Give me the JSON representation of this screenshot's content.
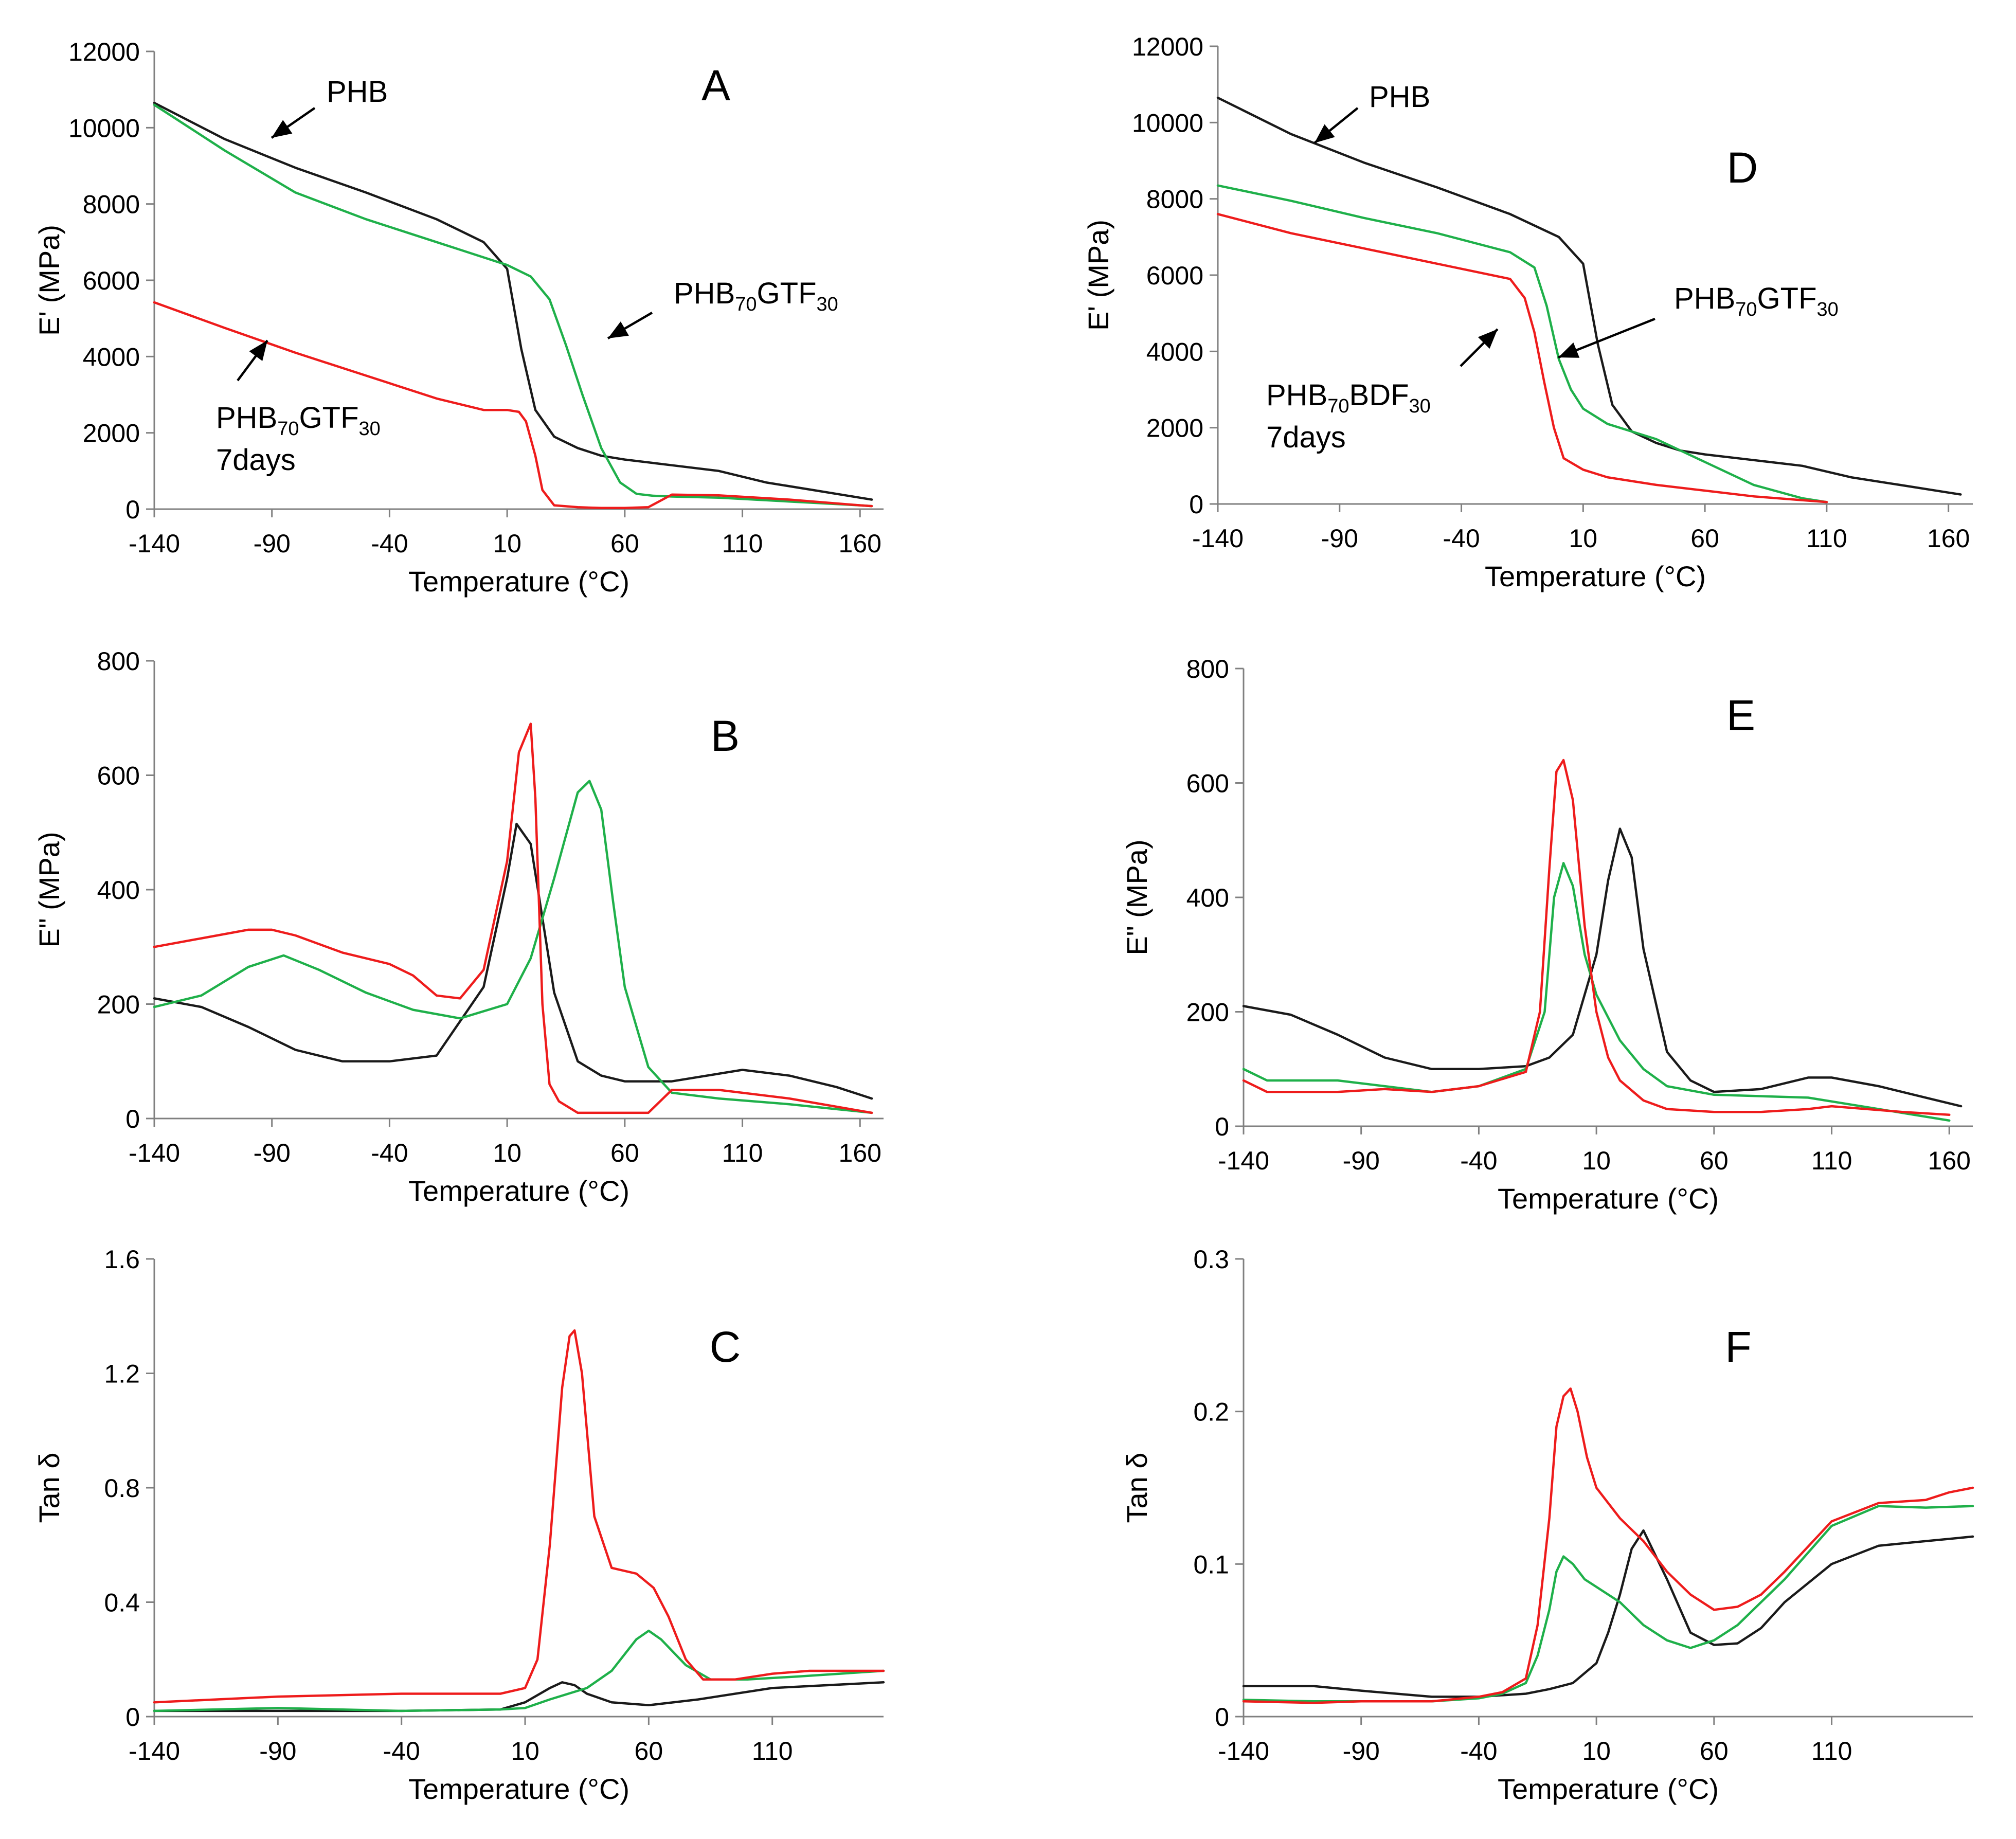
{
  "colors": {
    "PHB": "#1a1a1a",
    "PHB70GTF30": "#1fb04a",
    "PHB70BDF30_or_7days": "#ee1c1c",
    "axis": "#808080"
  },
  "chart_data": [
    {
      "id": "A",
      "type": "line",
      "letter": "A",
      "xlabel": "Temperature (°C)",
      "ylabel": "E' (MPa)",
      "xlim": [
        -140,
        170
      ],
      "ylim": [
        0,
        12000
      ],
      "xticks": [
        -140,
        -90,
        -40,
        10,
        60,
        110,
        160
      ],
      "yticks": [
        0,
        2000,
        4000,
        6000,
        8000,
        10000,
        12000
      ],
      "series": [
        {
          "color": "#1a1a1a",
          "x": [
            -140,
            -110,
            -80,
            -50,
            -20,
            0,
            10,
            16,
            22,
            30,
            40,
            50,
            60,
            80,
            100,
            120,
            140,
            160,
            165
          ],
          "y": [
            10650,
            9700,
            8950,
            8300,
            7600,
            7000,
            6300,
            4200,
            2600,
            1900,
            1600,
            1400,
            1300,
            1150,
            1000,
            700,
            500,
            300,
            250
          ]
        },
        {
          "color": "#1fb04a",
          "x": [
            -140,
            -110,
            -80,
            -50,
            -20,
            0,
            10,
            20,
            28,
            35,
            42,
            50,
            58,
            65,
            72,
            80,
            100,
            130,
            160,
            165
          ],
          "y": [
            10600,
            9400,
            8300,
            7600,
            7000,
            6600,
            6400,
            6100,
            5500,
            4300,
            3000,
            1600,
            700,
            400,
            350,
            330,
            300,
            200,
            100,
            80
          ]
        },
        {
          "color": "#ee1c1c",
          "x": [
            -140,
            -110,
            -80,
            -50,
            -20,
            0,
            10,
            15,
            18,
            22,
            25,
            30,
            40,
            50,
            60,
            70,
            80,
            100,
            130,
            160,
            165
          ],
          "y": [
            5420,
            4750,
            4100,
            3500,
            2900,
            2600,
            2600,
            2550,
            2300,
            1400,
            500,
            100,
            50,
            30,
            30,
            50,
            380,
            360,
            250,
            100,
            80
          ]
        }
      ],
      "annotations": [
        {
          "id": "phb",
          "text": "PHB",
          "sub": "",
          "after": "",
          "line2": ""
        },
        {
          "id": "gtf",
          "text": "PHB",
          "sub": "70",
          "after": "GTF",
          "sub2": "30",
          "line2": ""
        },
        {
          "id": "gtf7",
          "text": "PHB",
          "sub": "70",
          "after": "GTF",
          "sub2": "30",
          "line2": "7days"
        }
      ]
    },
    {
      "id": "B",
      "type": "line",
      "letter": "B",
      "xlabel": "Temperature (°C)",
      "ylabel": "E\" (MPa)",
      "xlim": [
        -140,
        170
      ],
      "ylim": [
        0,
        800
      ],
      "xticks": [
        -140,
        -90,
        -40,
        10,
        60,
        110,
        160
      ],
      "yticks": [
        0,
        200,
        400,
        600,
        800
      ],
      "series": [
        {
          "color": "#1a1a1a",
          "x": [
            -140,
            -120,
            -100,
            -80,
            -60,
            -40,
            -20,
            0,
            10,
            14,
            20,
            30,
            40,
            50,
            60,
            80,
            110,
            130,
            150,
            165
          ],
          "y": [
            210,
            195,
            160,
            120,
            100,
            100,
            110,
            230,
            420,
            515,
            480,
            220,
            100,
            75,
            65,
            65,
            85,
            75,
            55,
            35
          ]
        },
        {
          "color": "#1fb04a",
          "x": [
            -140,
            -120,
            -100,
            -85,
            -70,
            -50,
            -30,
            -10,
            10,
            20,
            30,
            40,
            45,
            50,
            55,
            60,
            70,
            80,
            100,
            130,
            165
          ],
          "y": [
            195,
            215,
            265,
            285,
            260,
            220,
            190,
            175,
            200,
            280,
            420,
            570,
            590,
            540,
            380,
            230,
            90,
            45,
            35,
            25,
            10
          ]
        },
        {
          "color": "#ee1c1c",
          "x": [
            -140,
            -120,
            -100,
            -90,
            -80,
            -60,
            -40,
            -30,
            -20,
            -10,
            0,
            10,
            15,
            20,
            22,
            25,
            28,
            32,
            40,
            50,
            60,
            70,
            80,
            100,
            130,
            165
          ],
          "y": [
            300,
            315,
            330,
            330,
            320,
            290,
            270,
            250,
            215,
            210,
            260,
            450,
            640,
            690,
            560,
            200,
            60,
            30,
            10,
            10,
            10,
            10,
            50,
            50,
            35,
            10
          ]
        }
      ]
    },
    {
      "id": "C",
      "type": "line",
      "letter": "C",
      "xlabel": "Temperature (°C)",
      "ylabel": "Tan δ",
      "xlim": [
        -140,
        155
      ],
      "ylim": [
        0,
        1.6
      ],
      "xticks": [
        -140,
        -90,
        -40,
        10,
        60,
        110
      ],
      "yticks": [
        0,
        0.4,
        0.8,
        1.2,
        1.6
      ],
      "series": [
        {
          "color": "#1a1a1a",
          "x": [
            -140,
            -90,
            -40,
            0,
            10,
            20,
            25,
            30,
            35,
            45,
            60,
            80,
            110,
            155
          ],
          "y": [
            0.02,
            0.02,
            0.02,
            0.025,
            0.05,
            0.1,
            0.12,
            0.11,
            0.08,
            0.05,
            0.04,
            0.06,
            0.1,
            0.12
          ]
        },
        {
          "color": "#1fb04a",
          "x": [
            -140,
            -90,
            -40,
            0,
            10,
            20,
            35,
            45,
            55,
            60,
            65,
            75,
            85,
            100,
            120,
            155
          ],
          "y": [
            0.02,
            0.03,
            0.02,
            0.025,
            0.03,
            0.06,
            0.1,
            0.16,
            0.27,
            0.3,
            0.27,
            0.18,
            0.13,
            0.13,
            0.14,
            0.16
          ]
        },
        {
          "color": "#ee1c1c",
          "x": [
            -140,
            -90,
            -40,
            0,
            10,
            15,
            20,
            25,
            28,
            30,
            33,
            38,
            45,
            55,
            62,
            68,
            75,
            82,
            95,
            110,
            125,
            155
          ],
          "y": [
            0.05,
            0.07,
            0.08,
            0.08,
            0.1,
            0.2,
            0.6,
            1.15,
            1.33,
            1.35,
            1.2,
            0.7,
            0.52,
            0.5,
            0.45,
            0.35,
            0.2,
            0.13,
            0.13,
            0.15,
            0.16,
            0.16
          ]
        }
      ]
    },
    {
      "id": "D",
      "type": "line",
      "letter": "D",
      "xlabel": "Temperature (°C)",
      "ylabel": "E' (MPa)",
      "xlim": [
        -140,
        170
      ],
      "ylim": [
        0,
        12000
      ],
      "xticks": [
        -140,
        -90,
        -40,
        10,
        60,
        110,
        160
      ],
      "yticks": [
        0,
        2000,
        4000,
        6000,
        8000,
        10000,
        12000
      ],
      "series": [
        {
          "color": "#1a1a1a",
          "x": [
            -140,
            -110,
            -80,
            -50,
            -20,
            0,
            10,
            16,
            22,
            30,
            40,
            50,
            60,
            80,
            100,
            120,
            140,
            160,
            165
          ],
          "y": [
            10650,
            9700,
            8950,
            8300,
            7600,
            7000,
            6300,
            4200,
            2600,
            1900,
            1600,
            1400,
            1300,
            1150,
            1000,
            700,
            500,
            300,
            250
          ]
        },
        {
          "color": "#1fb04a",
          "x": [
            -140,
            -110,
            -80,
            -50,
            -20,
            -10,
            -5,
            0,
            5,
            10,
            20,
            40,
            60,
            80,
            100,
            110
          ],
          "y": [
            8350,
            7950,
            7500,
            7100,
            6600,
            6200,
            5200,
            3800,
            3000,
            2500,
            2100,
            1700,
            1100,
            500,
            150,
            50
          ]
        },
        {
          "color": "#ee1c1c",
          "x": [
            -140,
            -110,
            -80,
            -50,
            -20,
            -14,
            -10,
            -6,
            -2,
            2,
            10,
            20,
            40,
            60,
            80,
            100,
            110
          ],
          "y": [
            7600,
            7100,
            6700,
            6300,
            5900,
            5400,
            4500,
            3200,
            2000,
            1200,
            900,
            700,
            500,
            350,
            200,
            100,
            50
          ]
        }
      ],
      "annotations": [
        {
          "id": "phb",
          "text": "PHB",
          "sub": "",
          "after": "",
          "line2": ""
        },
        {
          "id": "gtf",
          "text": "PHB",
          "sub": "70",
          "after": "GTF",
          "sub2": "30",
          "line2": ""
        },
        {
          "id": "bdf7",
          "text": "PHB",
          "sub": "70",
          "after": "BDF",
          "sub2": "30",
          "line2": "7days"
        }
      ]
    },
    {
      "id": "E",
      "type": "line",
      "letter": "E",
      "xlabel": "Temperature (°C)",
      "ylabel": "E\" (MPa)",
      "xlim": [
        -140,
        170
      ],
      "ylim": [
        0,
        800
      ],
      "xticks": [
        -140,
        -90,
        -40,
        10,
        60,
        110,
        160
      ],
      "yticks": [
        0,
        200,
        400,
        600,
        800
      ],
      "series": [
        {
          "color": "#1a1a1a",
          "x": [
            -140,
            -120,
            -100,
            -80,
            -60,
            -40,
            -20,
            -10,
            0,
            10,
            15,
            20,
            25,
            30,
            40,
            50,
            60,
            80,
            100,
            110,
            130,
            150,
            165
          ],
          "y": [
            210,
            195,
            160,
            120,
            100,
            100,
            105,
            120,
            160,
            300,
            430,
            520,
            470,
            310,
            130,
            80,
            60,
            65,
            85,
            85,
            70,
            50,
            35
          ]
        },
        {
          "color": "#1fb04a",
          "x": [
            -140,
            -130,
            -100,
            -80,
            -60,
            -40,
            -20,
            -12,
            -8,
            -4,
            0,
            5,
            10,
            20,
            30,
            40,
            60,
            100,
            130,
            160
          ],
          "y": [
            100,
            80,
            80,
            70,
            60,
            70,
            100,
            200,
            400,
            460,
            420,
            300,
            230,
            150,
            100,
            70,
            55,
            50,
            30,
            10
          ]
        },
        {
          "color": "#ee1c1c",
          "x": [
            -140,
            -130,
            -100,
            -80,
            -60,
            -40,
            -20,
            -14,
            -10,
            -7,
            -4,
            0,
            5,
            10,
            15,
            20,
            30,
            40,
            60,
            80,
            100,
            110,
            140,
            160
          ],
          "y": [
            80,
            60,
            60,
            65,
            60,
            70,
            95,
            200,
            450,
            620,
            640,
            570,
            350,
            200,
            120,
            80,
            45,
            30,
            25,
            25,
            30,
            35,
            25,
            20
          ]
        }
      ]
    },
    {
      "id": "F",
      "type": "line",
      "letter": "F",
      "xlabel": "Temperature (°C)",
      "ylabel": "Tan δ",
      "xlim": [
        -140,
        170
      ],
      "ylim": [
        0,
        0.3
      ],
      "xticks": [
        -140,
        -90,
        -40,
        10,
        60,
        110
      ],
      "yticks": [
        0,
        0.1,
        0.2,
        0.3
      ],
      "series": [
        {
          "color": "#1a1a1a",
          "x": [
            -140,
            -110,
            -90,
            -60,
            -40,
            -20,
            -10,
            0,
            10,
            15,
            20,
            25,
            30,
            40,
            50,
            60,
            70,
            80,
            90,
            110,
            130,
            150,
            170
          ],
          "y": [
            0.02,
            0.02,
            0.017,
            0.013,
            0.013,
            0.015,
            0.018,
            0.022,
            0.035,
            0.055,
            0.08,
            0.11,
            0.122,
            0.09,
            0.055,
            0.047,
            0.048,
            0.058,
            0.075,
            0.1,
            0.112,
            0.115,
            0.118
          ]
        },
        {
          "color": "#1fb04a",
          "x": [
            -140,
            -110,
            -90,
            -60,
            -40,
            -30,
            -20,
            -15,
            -10,
            -7,
            -4,
            0,
            5,
            10,
            20,
            30,
            40,
            50,
            60,
            70,
            80,
            90,
            110,
            130,
            150,
            170
          ],
          "y": [
            0.011,
            0.01,
            0.01,
            0.01,
            0.012,
            0.015,
            0.022,
            0.04,
            0.07,
            0.095,
            0.105,
            0.1,
            0.09,
            0.085,
            0.075,
            0.06,
            0.05,
            0.045,
            0.05,
            0.06,
            0.075,
            0.09,
            0.125,
            0.138,
            0.137,
            0.138
          ]
        },
        {
          "color": "#ee1c1c",
          "x": [
            -140,
            -110,
            -90,
            -60,
            -40,
            -30,
            -20,
            -15,
            -10,
            -7,
            -4,
            -1,
            2,
            6,
            10,
            20,
            30,
            40,
            50,
            60,
            70,
            80,
            90,
            110,
            130,
            150,
            160,
            170
          ],
          "y": [
            0.01,
            0.009,
            0.01,
            0.01,
            0.013,
            0.016,
            0.025,
            0.06,
            0.13,
            0.19,
            0.21,
            0.215,
            0.2,
            0.17,
            0.15,
            0.13,
            0.115,
            0.095,
            0.08,
            0.07,
            0.072,
            0.08,
            0.095,
            0.128,
            0.14,
            0.142,
            0.147,
            0.15
          ]
        }
      ]
    }
  ]
}
